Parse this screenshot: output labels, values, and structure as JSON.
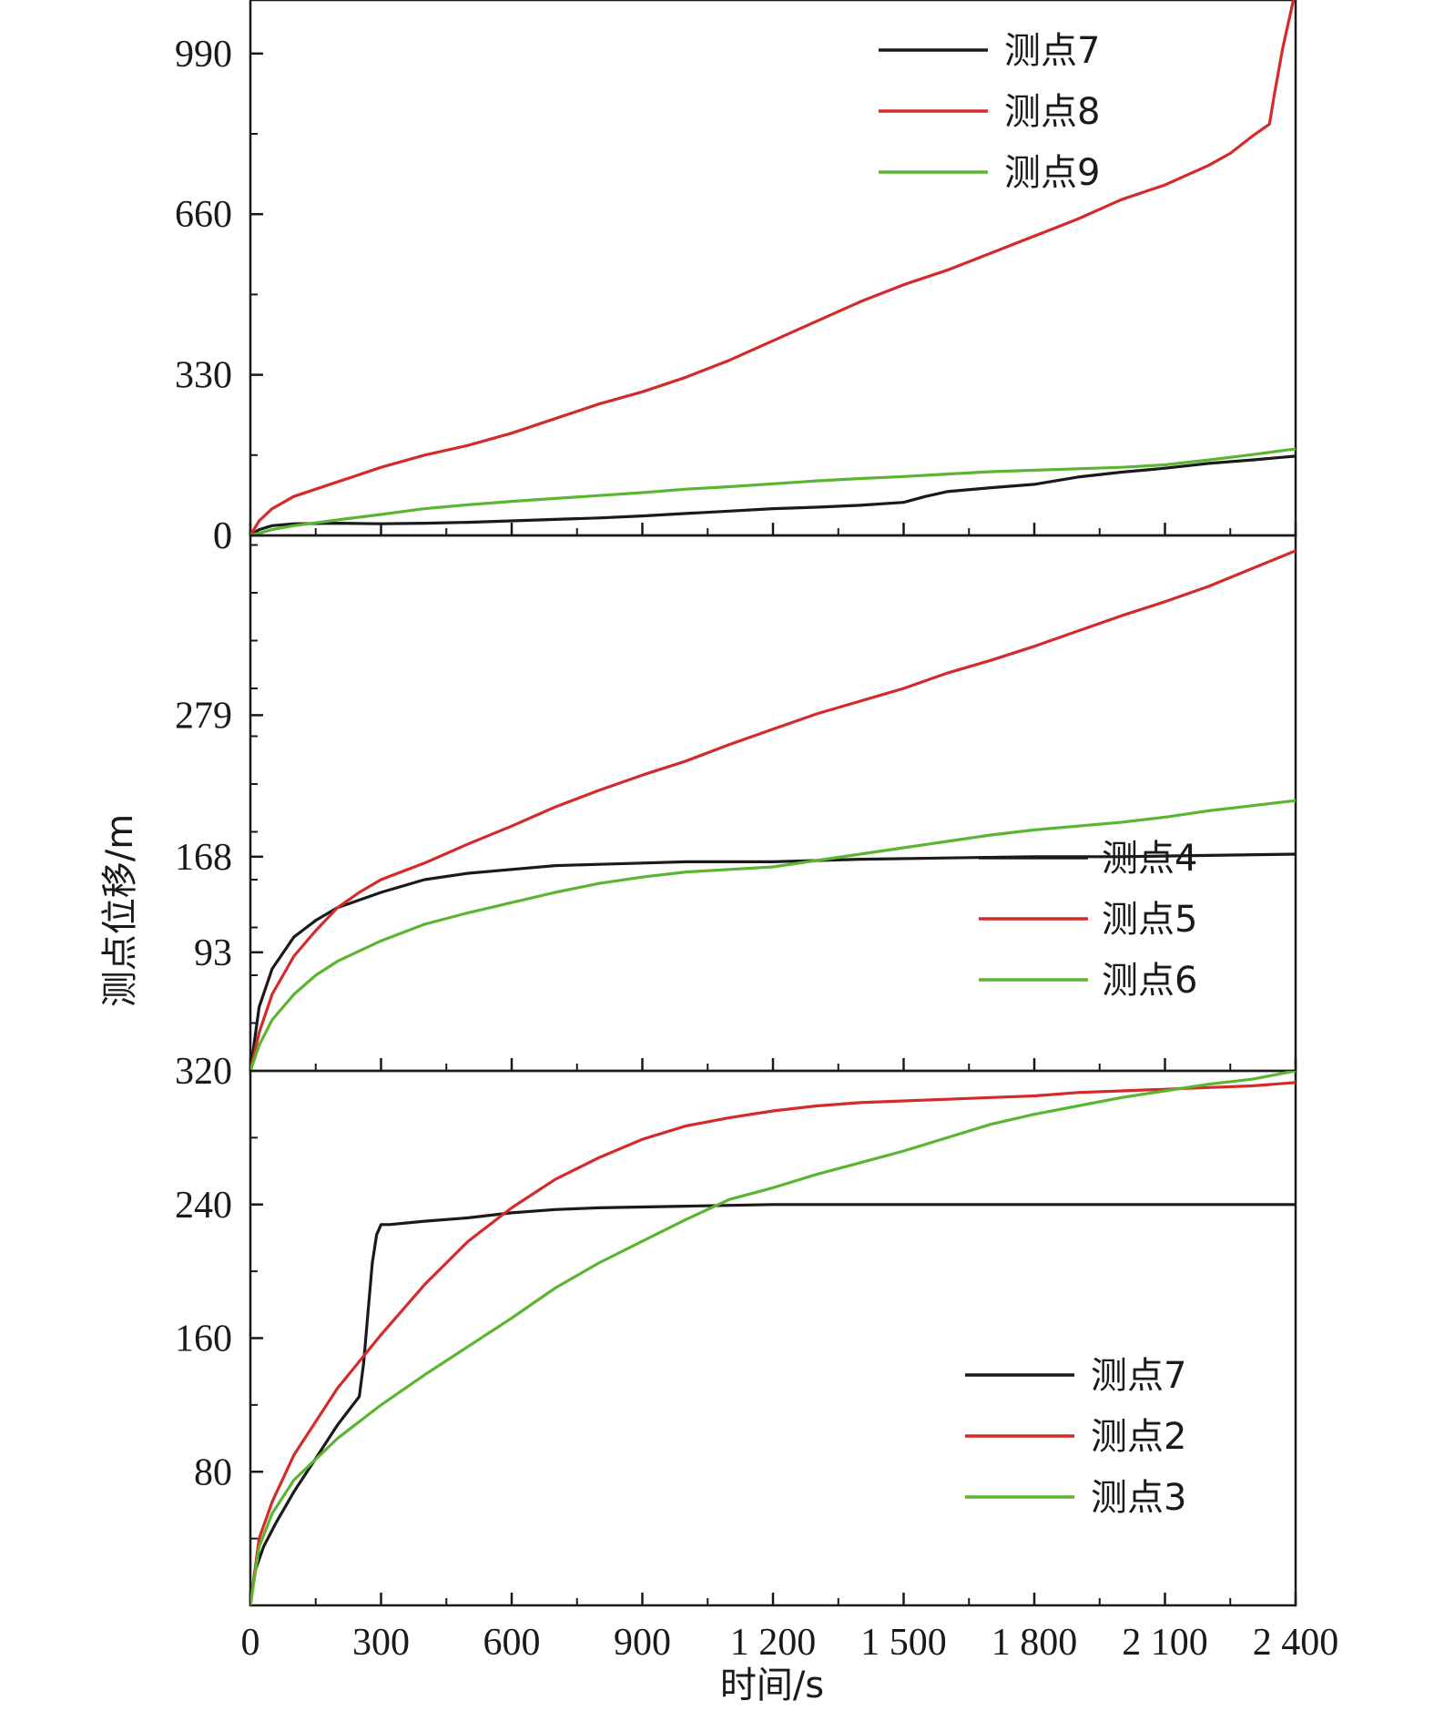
{
  "chart_data": {
    "type": "line",
    "xlabel": "时间/s",
    "ylabel": "测点位移/m",
    "x_range": [
      0,
      2400
    ],
    "x_ticks": [
      0,
      300,
      600,
      900,
      1200,
      1500,
      1800,
      2100,
      2400
    ],
    "x_tick_labels": [
      "0",
      "300",
      "600",
      "900",
      "1 200",
      "1 500",
      "1 800",
      "2 100",
      "2 400"
    ],
    "colors": {
      "black": "#1a1a1a",
      "red": "#d42a2a",
      "green": "#5cb531"
    },
    "panels": [
      {
        "id": "top",
        "ylim": [
          0,
          1100
        ],
        "y_ticks": [
          0,
          330,
          660,
          990
        ],
        "y_tick_labels": [
          "0",
          "330",
          "660",
          "990"
        ],
        "legend_position": "top-right",
        "series": [
          {
            "name": "测点7",
            "color": "black",
            "x": [
              0,
              20,
              50,
              100,
              200,
              300,
              400,
              500,
              600,
              700,
              800,
              900,
              1000,
              1100,
              1200,
              1300,
              1400,
              1500,
              1550,
              1600,
              1700,
              1800,
              1900,
              2000,
              2100,
              2200,
              2300,
              2400
            ],
            "y": [
              0,
              12,
              20,
              24,
              25,
              24,
              25,
              27,
              30,
              33,
              36,
              40,
              45,
              50,
              55,
              58,
              62,
              68,
              80,
              90,
              98,
              105,
              120,
              130,
              138,
              148,
              155,
              163
            ]
          },
          {
            "name": "测点8",
            "color": "red",
            "x": [
              0,
              20,
              50,
              100,
              200,
              300,
              400,
              500,
              600,
              700,
              800,
              900,
              1000,
              1100,
              1200,
              1300,
              1400,
              1500,
              1600,
              1700,
              1800,
              1900,
              2000,
              2100,
              2200,
              2250,
              2300,
              2340,
              2350,
              2370,
              2400
            ],
            "y": [
              0,
              30,
              55,
              80,
              110,
              140,
              165,
              185,
              210,
              240,
              270,
              295,
              325,
              360,
              400,
              440,
              480,
              515,
              545,
              580,
              615,
              650,
              690,
              720,
              760,
              785,
              820,
              845,
              900,
              1000,
              1120
            ]
          },
          {
            "name": "测点9",
            "color": "green",
            "x": [
              0,
              50,
              100,
              200,
              300,
              400,
              500,
              600,
              700,
              800,
              900,
              1000,
              1100,
              1200,
              1300,
              1400,
              1500,
              1600,
              1700,
              1800,
              1900,
              2000,
              2100,
              2200,
              2300,
              2400
            ],
            "y": [
              0,
              12,
              20,
              32,
              43,
              55,
              63,
              70,
              76,
              82,
              88,
              95,
              100,
              106,
              112,
              117,
              121,
              126,
              131,
              134,
              137,
              140,
              145,
              155,
              166,
              178
            ]
          }
        ]
      },
      {
        "id": "middle",
        "ylim": [
          0,
          420
        ],
        "y_ticks": [
          93,
          168,
          279
        ],
        "y_tick_labels": [
          "93",
          "168",
          "279"
        ],
        "bottom_tick_label": "320",
        "legend_position": "bottom-right",
        "series": [
          {
            "name": "测点4",
            "color": "black",
            "x": [
              0,
              20,
              50,
              100,
              150,
              200,
              300,
              400,
              500,
              600,
              700,
              800,
              900,
              1000,
              1200,
              1400,
              1600,
              1800,
              2000,
              2200,
              2400
            ],
            "y": [
              0,
              50,
              80,
              105,
              118,
              128,
              140,
              150,
              155,
              158,
              161,
              162,
              163,
              164,
              164,
              166,
              167,
              168,
              168,
              169,
              170
            ]
          },
          {
            "name": "测点5",
            "color": "red",
            "x": [
              0,
              20,
              50,
              100,
              150,
              200,
              250,
              300,
              400,
              500,
              600,
              700,
              800,
              900,
              1000,
              1100,
              1200,
              1300,
              1400,
              1500,
              1600,
              1700,
              1800,
              1900,
              2000,
              2100,
              2200,
              2300,
              2400
            ],
            "y": [
              0,
              30,
              60,
              90,
              110,
              128,
              140,
              150,
              163,
              178,
              192,
              207,
              220,
              232,
              243,
              256,
              268,
              280,
              290,
              300,
              312,
              322,
              333,
              345,
              357,
              368,
              380,
              394,
              408
            ]
          },
          {
            "name": "测点6",
            "color": "green",
            "x": [
              0,
              20,
              50,
              100,
              150,
              200,
              300,
              400,
              500,
              600,
              700,
              800,
              900,
              1000,
              1100,
              1200,
              1300,
              1400,
              1500,
              1600,
              1700,
              1800,
              1900,
              2000,
              2100,
              2200,
              2300,
              2400
            ],
            "y": [
              0,
              20,
              40,
              60,
              75,
              86,
              102,
              115,
              124,
              132,
              140,
              147,
              152,
              156,
              158,
              160,
              165,
              170,
              175,
              180,
              185,
              189,
              192,
              195,
              199,
              204,
              208,
              212
            ]
          }
        ]
      },
      {
        "id": "bottom",
        "ylim": [
          0,
          320
        ],
        "y_ticks": [
          80,
          160,
          240
        ],
        "y_tick_labels": [
          "80",
          "160",
          "240"
        ],
        "legend_position": "bottom-right",
        "series": [
          {
            "name": "测点7",
            "color": "black",
            "x": [
              0,
              10,
              30,
              60,
              100,
              150,
              200,
              250,
              260,
              270,
              280,
              290,
              300,
              320,
              400,
              500,
              600,
              700,
              800,
              1000,
              1200,
              1600,
              2000,
              2400
            ],
            "y": [
              0,
              20,
              35,
              50,
              68,
              88,
              108,
              125,
              145,
              175,
              205,
              222,
              228,
              228,
              230,
              232,
              235,
              237,
              238,
              239,
              240,
              240,
              240,
              240
            ]
          },
          {
            "name": "测点2",
            "color": "red",
            "x": [
              0,
              20,
              50,
              100,
              200,
              300,
              400,
              500,
              600,
              700,
              800,
              900,
              1000,
              1100,
              1200,
              1300,
              1400,
              1500,
              1600,
              1700,
              1800,
              1900,
              2000,
              2100,
              2200,
              2300,
              2400
            ],
            "y": [
              0,
              40,
              62,
              90,
              130,
              162,
              192,
              218,
              238,
              255,
              268,
              279,
              287,
              292,
              296,
              299,
              301,
              302,
              303,
              304,
              305,
              307,
              308,
              309,
              310,
              311,
              313
            ]
          },
          {
            "name": "测点3",
            "color": "green",
            "x": [
              0,
              20,
              50,
              100,
              200,
              300,
              400,
              500,
              600,
              700,
              800,
              900,
              1000,
              1100,
              1200,
              1300,
              1400,
              1500,
              1600,
              1700,
              1800,
              1900,
              2000,
              2100,
              2200,
              2300,
              2400
            ],
            "y": [
              0,
              35,
              55,
              75,
              100,
              120,
              138,
              155,
              172,
              190,
              205,
              218,
              231,
              243,
              250,
              258,
              265,
              272,
              280,
              288,
              294,
              299,
              304,
              308,
              312,
              315,
              320
            ]
          }
        ]
      }
    ]
  }
}
